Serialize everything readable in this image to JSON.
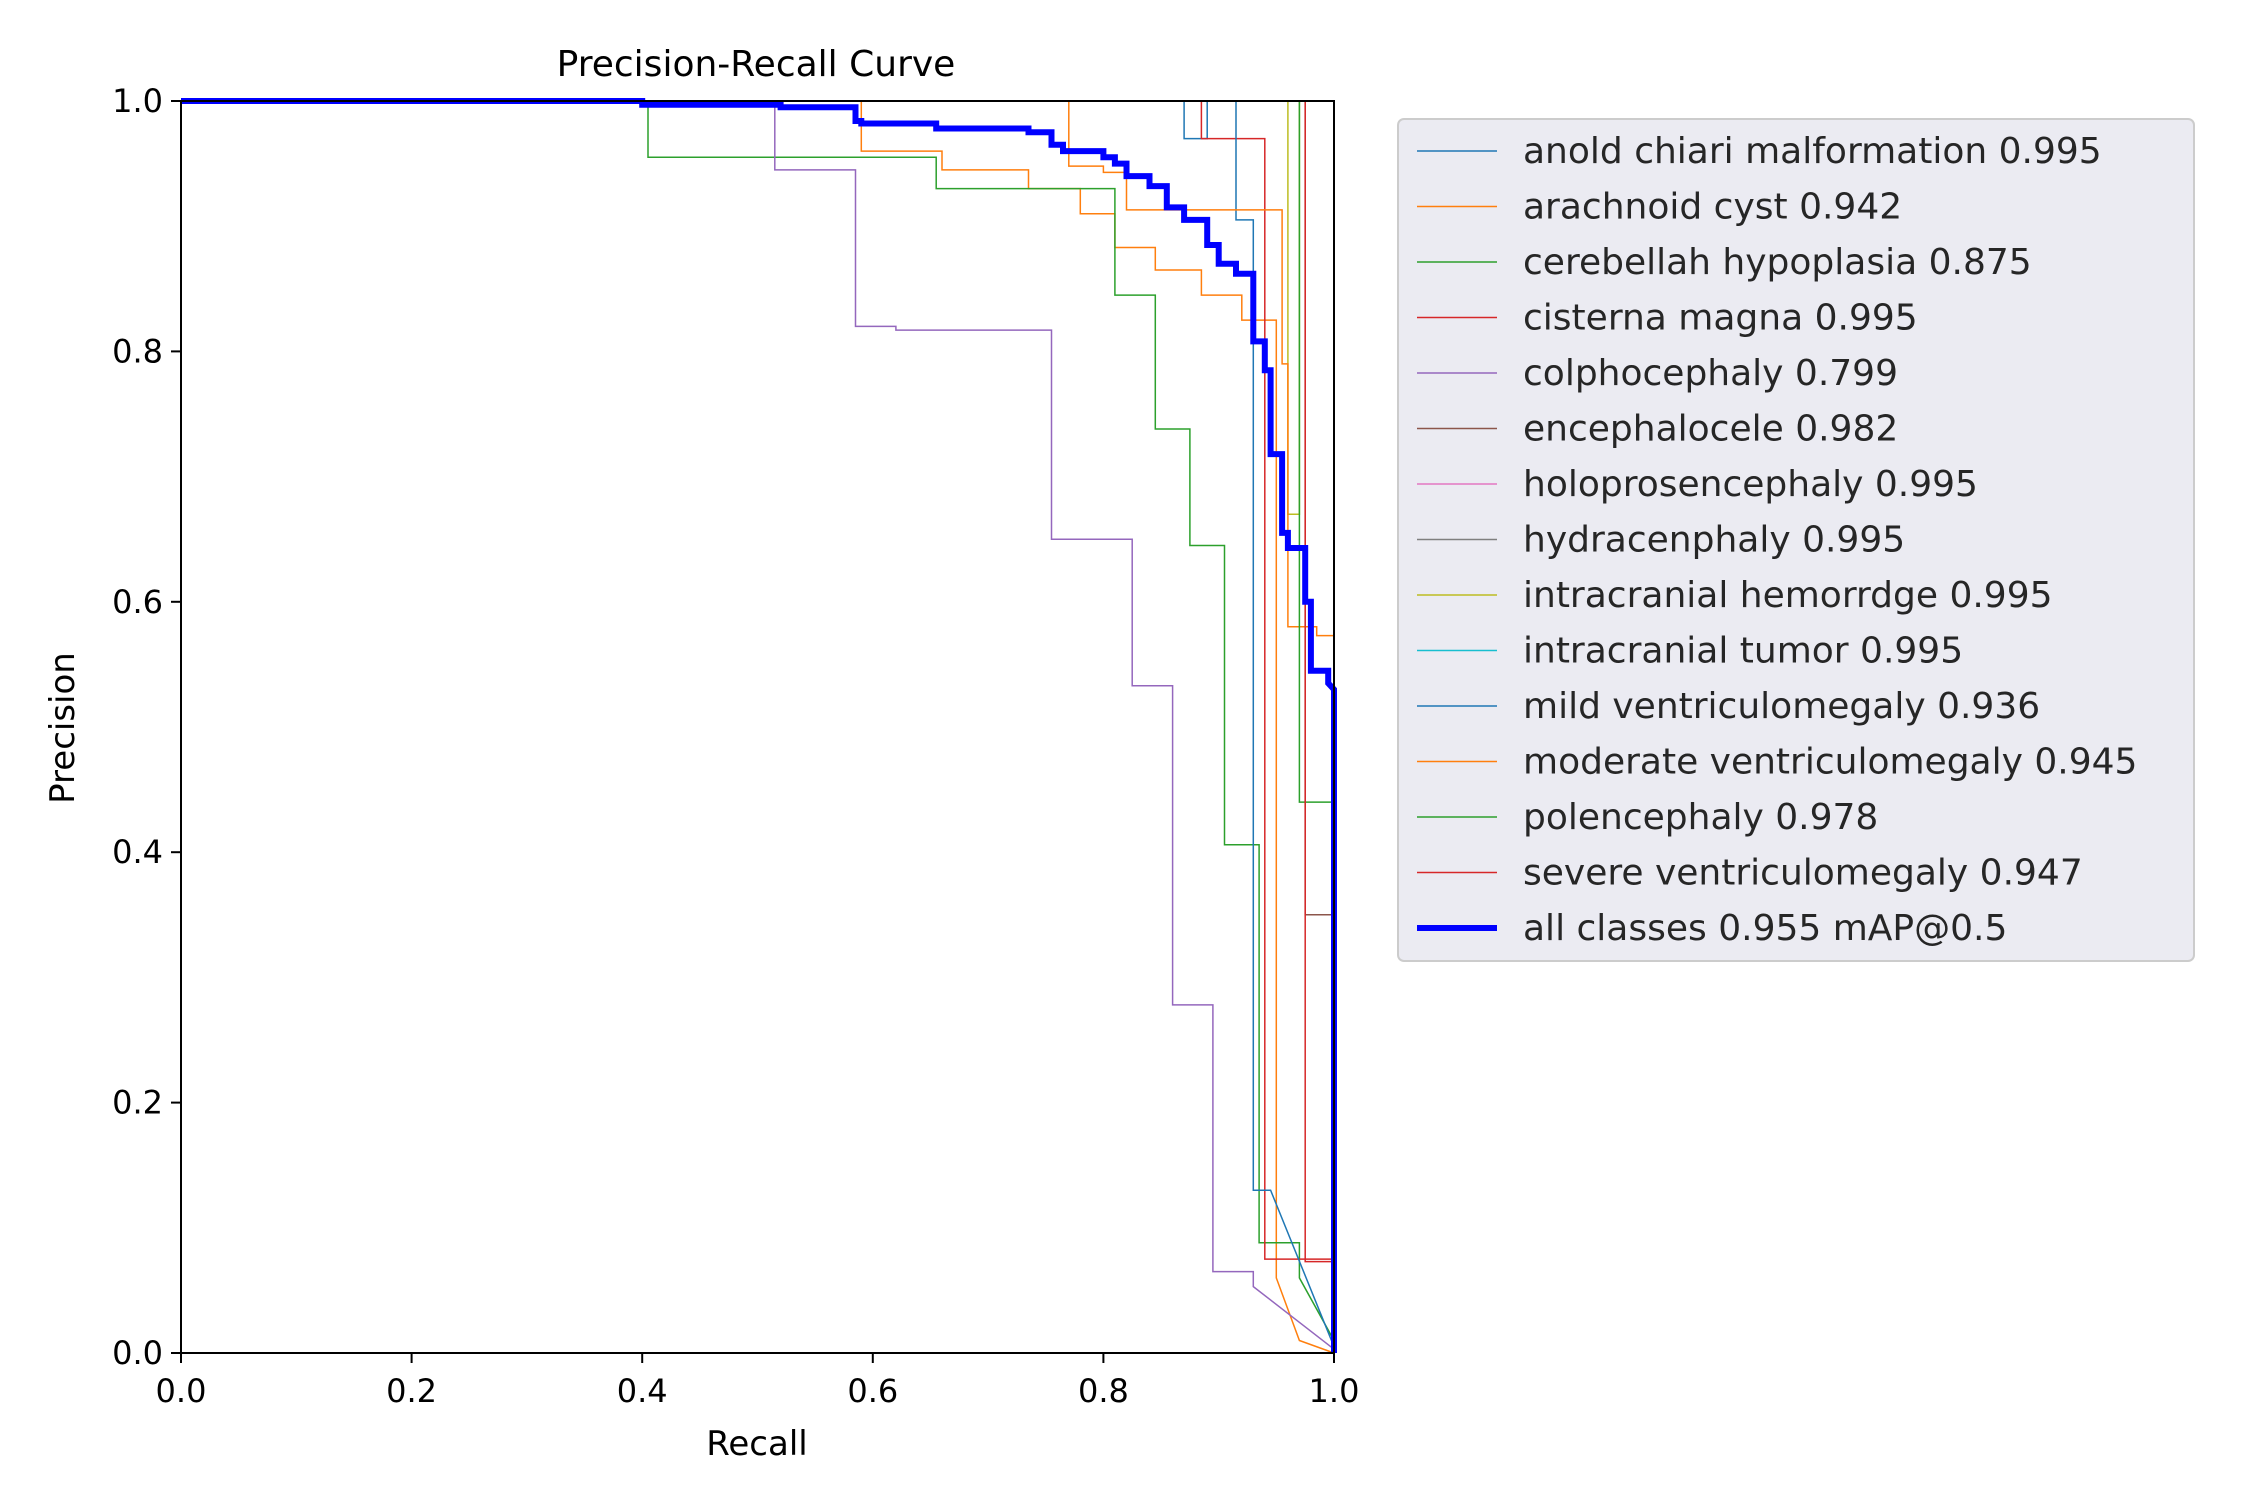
{
  "chart_data": {
    "type": "line",
    "title": "Precision-Recall Curve",
    "xlabel": "Recall",
    "ylabel": "Precision",
    "xlim": [
      0,
      1
    ],
    "ylim": [
      0,
      1
    ],
    "xticks": [
      "0.0",
      "0.2",
      "0.4",
      "0.6",
      "0.8",
      "1.0"
    ],
    "yticks": [
      "0.0",
      "0.2",
      "0.4",
      "0.6",
      "0.8",
      "1.0"
    ],
    "grid": false,
    "legend_placement": "outside-right",
    "series": [
      {
        "name": "anold chiari malformation 0.995",
        "color": "#1f77b4",
        "width": 1.5,
        "points": [
          [
            0,
            1
          ],
          [
            0.87,
            1
          ],
          [
            0.87,
            0.97
          ],
          [
            0.89,
            0.97
          ],
          [
            0.89,
            1
          ],
          [
            1,
            1
          ],
          [
            1,
            0
          ]
        ]
      },
      {
        "name": "arachnoid cyst 0.942",
        "color": "#ff7f0e",
        "width": 1.5,
        "points": [
          [
            0,
            1
          ],
          [
            0.59,
            1
          ],
          [
            0.59,
            0.96
          ],
          [
            0.66,
            0.96
          ],
          [
            0.66,
            0.945
          ],
          [
            0.735,
            0.945
          ],
          [
            0.735,
            0.93
          ],
          [
            0.78,
            0.93
          ],
          [
            0.78,
            0.91
          ],
          [
            0.81,
            0.91
          ],
          [
            0.81,
            0.883
          ],
          [
            0.845,
            0.883
          ],
          [
            0.845,
            0.865
          ],
          [
            0.885,
            0.865
          ],
          [
            0.885,
            0.845
          ],
          [
            0.92,
            0.845
          ],
          [
            0.92,
            0.825
          ],
          [
            0.95,
            0.825
          ],
          [
            0.95,
            0.06
          ],
          [
            0.97,
            0.01
          ],
          [
            1,
            0
          ]
        ]
      },
      {
        "name": "cerebellah hypoplasia 0.875",
        "color": "#2ca02c",
        "width": 1.5,
        "points": [
          [
            0,
            1
          ],
          [
            0.405,
            1
          ],
          [
            0.405,
            0.955
          ],
          [
            0.655,
            0.955
          ],
          [
            0.655,
            0.93
          ],
          [
            0.81,
            0.93
          ],
          [
            0.81,
            0.845
          ],
          [
            0.845,
            0.845
          ],
          [
            0.845,
            0.738
          ],
          [
            0.875,
            0.738
          ],
          [
            0.875,
            0.645
          ],
          [
            0.905,
            0.645
          ],
          [
            0.905,
            0.406
          ],
          [
            0.935,
            0.406
          ],
          [
            0.935,
            0.088
          ],
          [
            0.97,
            0.088
          ],
          [
            0.97,
            0.06
          ],
          [
            1,
            0.01
          ]
        ]
      },
      {
        "name": "cisterna magna 0.995",
        "color": "#d62728",
        "width": 1.5,
        "points": [
          [
            0,
            1
          ],
          [
            0.885,
            1
          ],
          [
            0.885,
            0.97
          ],
          [
            0.94,
            0.97
          ],
          [
            0.94,
            0.075
          ],
          [
            1,
            0.075
          ],
          [
            1,
            0
          ]
        ]
      },
      {
        "name": "colphocephaly 0.799",
        "color": "#9467bd",
        "width": 1.5,
        "points": [
          [
            0,
            1
          ],
          [
            0.515,
            1
          ],
          [
            0.515,
            0.945
          ],
          [
            0.585,
            0.945
          ],
          [
            0.585,
            0.82
          ],
          [
            0.62,
            0.82
          ],
          [
            0.62,
            0.817
          ],
          [
            0.755,
            0.817
          ],
          [
            0.755,
            0.65
          ],
          [
            0.825,
            0.65
          ],
          [
            0.825,
            0.533
          ],
          [
            0.86,
            0.533
          ],
          [
            0.86,
            0.278
          ],
          [
            0.895,
            0.278
          ],
          [
            0.895,
            0.065
          ],
          [
            0.93,
            0.065
          ],
          [
            0.93,
            0.053
          ],
          [
            1,
            0.003
          ]
        ]
      },
      {
        "name": "encephalocele 0.982",
        "color": "#8c564b",
        "width": 1.5,
        "points": [
          [
            0,
            1
          ],
          [
            0.975,
            1
          ],
          [
            0.975,
            0.35
          ],
          [
            1,
            0.35
          ],
          [
            1,
            0
          ]
        ]
      },
      {
        "name": "holoprosencephaly 0.995",
        "color": "#e377c2",
        "width": 1.5,
        "points": [
          [
            0,
            1
          ],
          [
            1,
            1
          ],
          [
            1,
            0
          ]
        ]
      },
      {
        "name": "hydracenphaly 0.995",
        "color": "#7f7f7f",
        "width": 1.5,
        "points": [
          [
            0,
            1
          ],
          [
            1,
            1
          ],
          [
            1,
            0
          ]
        ]
      },
      {
        "name": "intracranial hemorrdge 0.995",
        "color": "#bcbd22",
        "width": 1.5,
        "points": [
          [
            0,
            1
          ],
          [
            0.96,
            1
          ],
          [
            0.96,
            0.67
          ],
          [
            0.97,
            0.67
          ],
          [
            0.97,
            1
          ],
          [
            1,
            1
          ],
          [
            1,
            0
          ]
        ]
      },
      {
        "name": "intracranial tumor 0.995",
        "color": "#17becf",
        "width": 1.5,
        "points": [
          [
            0,
            1
          ],
          [
            1,
            1
          ],
          [
            1,
            0
          ]
        ]
      },
      {
        "name": "mild ventriculomegaly 0.936",
        "color": "#1f77b4",
        "width": 1.5,
        "points": [
          [
            0,
            1
          ],
          [
            0.915,
            1
          ],
          [
            0.915,
            0.905
          ],
          [
            0.93,
            0.905
          ],
          [
            0.93,
            0.13
          ],
          [
            0.945,
            0.13
          ],
          [
            1,
            0.005
          ]
        ]
      },
      {
        "name": "moderate ventriculomegaly 0.945",
        "color": "#ff7f0e",
        "width": 1.5,
        "points": [
          [
            0,
            1
          ],
          [
            0.77,
            1
          ],
          [
            0.77,
            0.948
          ],
          [
            0.8,
            0.948
          ],
          [
            0.8,
            0.943
          ],
          [
            0.82,
            0.943
          ],
          [
            0.82,
            0.913
          ],
          [
            0.955,
            0.913
          ],
          [
            0.955,
            0.79
          ],
          [
            0.96,
            0.79
          ],
          [
            0.96,
            0.58
          ],
          [
            0.985,
            0.58
          ],
          [
            0.985,
            0.573
          ],
          [
            1,
            0.573
          ],
          [
            1,
            0
          ]
        ]
      },
      {
        "name": "polencephaly 0.978",
        "color": "#2ca02c",
        "width": 1.5,
        "points": [
          [
            0,
            1
          ],
          [
            0.97,
            1
          ],
          [
            0.97,
            0.44
          ],
          [
            1,
            0.44
          ],
          [
            1,
            0
          ]
        ]
      },
      {
        "name": "severe ventriculomegaly 0.947",
        "color": "#d62728",
        "width": 1.5,
        "points": [
          [
            0,
            1
          ],
          [
            0.975,
            1
          ],
          [
            0.975,
            0.073
          ],
          [
            1,
            0.073
          ],
          [
            1,
            0
          ]
        ]
      },
      {
        "name": "all classes 0.955 mAP@0.5",
        "color": "#0000ff",
        "width": 6,
        "points": [
          [
            0,
            1
          ],
          [
            0.4,
            1
          ],
          [
            0.4,
            0.997
          ],
          [
            0.52,
            0.997
          ],
          [
            0.52,
            0.995
          ],
          [
            0.585,
            0.995
          ],
          [
            0.585,
            0.984
          ],
          [
            0.59,
            0.984
          ],
          [
            0.59,
            0.982
          ],
          [
            0.655,
            0.982
          ],
          [
            0.655,
            0.978
          ],
          [
            0.735,
            0.978
          ],
          [
            0.735,
            0.975
          ],
          [
            0.755,
            0.975
          ],
          [
            0.755,
            0.965
          ],
          [
            0.765,
            0.965
          ],
          [
            0.765,
            0.96
          ],
          [
            0.8,
            0.96
          ],
          [
            0.8,
            0.955
          ],
          [
            0.81,
            0.955
          ],
          [
            0.81,
            0.95
          ],
          [
            0.82,
            0.95
          ],
          [
            0.82,
            0.94
          ],
          [
            0.84,
            0.94
          ],
          [
            0.84,
            0.932
          ],
          [
            0.855,
            0.932
          ],
          [
            0.855,
            0.915
          ],
          [
            0.87,
            0.915
          ],
          [
            0.87,
            0.905
          ],
          [
            0.89,
            0.905
          ],
          [
            0.89,
            0.885
          ],
          [
            0.9,
            0.885
          ],
          [
            0.9,
            0.87
          ],
          [
            0.915,
            0.87
          ],
          [
            0.915,
            0.862
          ],
          [
            0.93,
            0.862
          ],
          [
            0.93,
            0.808
          ],
          [
            0.94,
            0.808
          ],
          [
            0.94,
            0.785
          ],
          [
            0.945,
            0.785
          ],
          [
            0.945,
            0.718
          ],
          [
            0.955,
            0.718
          ],
          [
            0.955,
            0.655
          ],
          [
            0.96,
            0.655
          ],
          [
            0.96,
            0.643
          ],
          [
            0.975,
            0.643
          ],
          [
            0.975,
            0.6
          ],
          [
            0.98,
            0.6
          ],
          [
            0.98,
            0.545
          ],
          [
            0.995,
            0.545
          ],
          [
            0.995,
            0.535
          ],
          [
            1,
            0.53
          ],
          [
            1,
            0
          ]
        ]
      }
    ]
  }
}
